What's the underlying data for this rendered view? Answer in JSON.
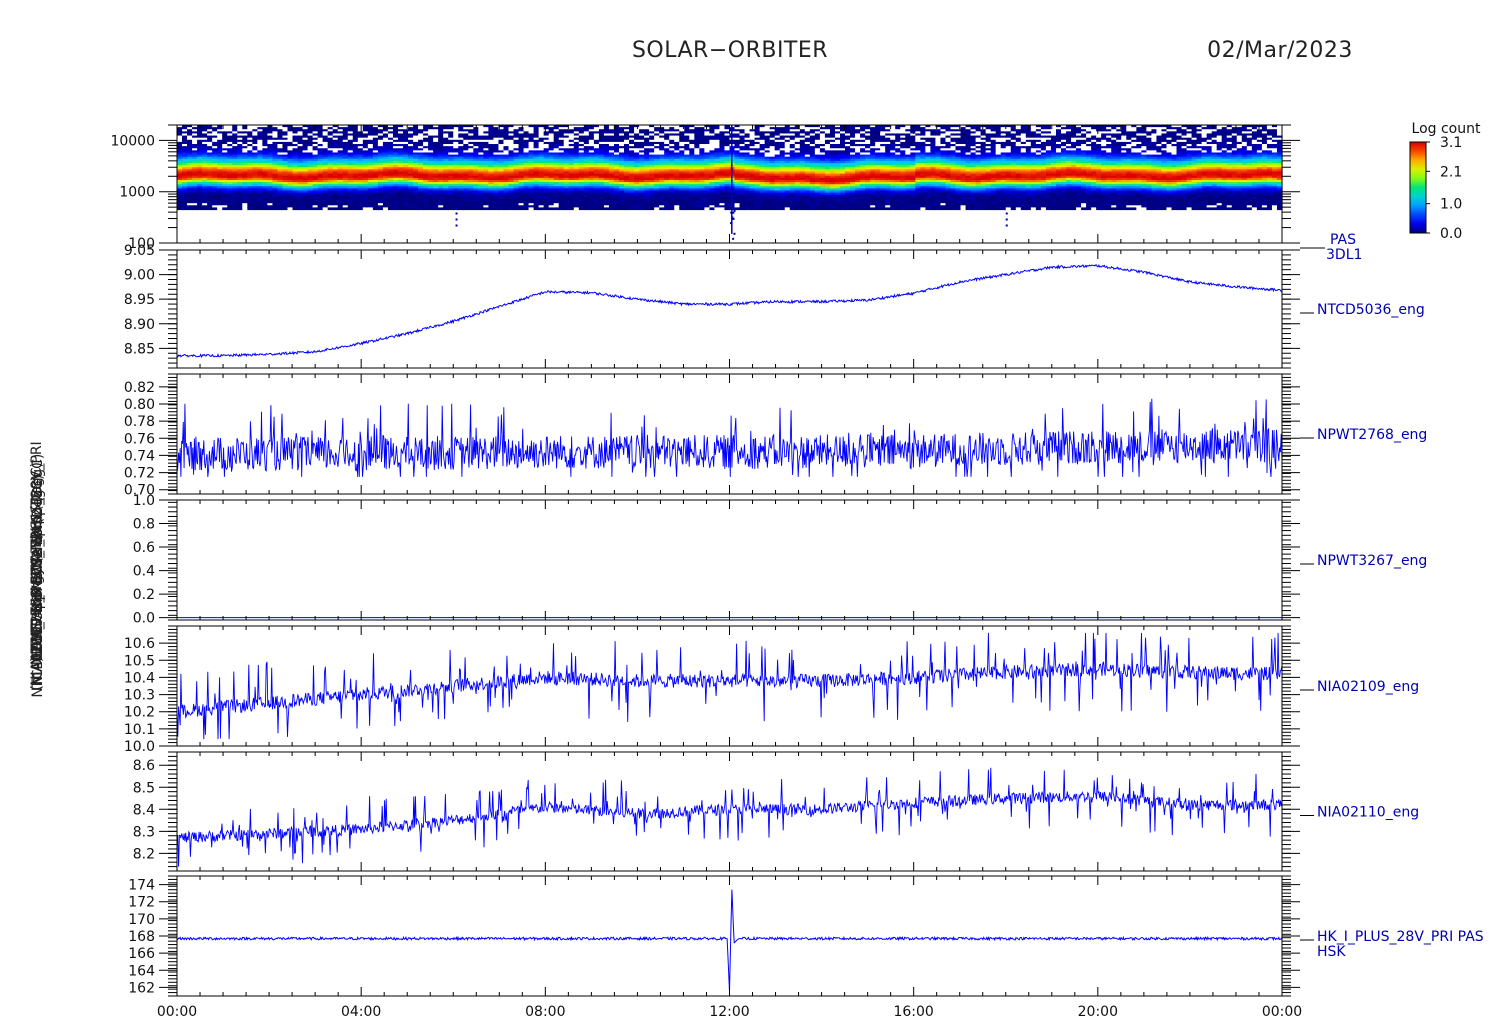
{
  "header": {
    "title": "SOLAR−ORBITER",
    "date": "02/Mar/2023"
  },
  "colors": {
    "trace": "#0000ff",
    "label": "#0000b0",
    "axis": "#000000"
  },
  "y_titles": [
    "PAS Energy (eV)",
    "NTCD5036 Approx Temp (DegC)",
    "NPWT2768 SWA EAS1 T",
    "NPWT3267 SWA EAS2 T",
    "NIA02109 HIS ECS Temp (DegC)",
    "NIA02110 HIS ECS2 Temp (DegC)",
    "(mA) DM_HK_IMON_I_PLUS_28V_PRI"
  ],
  "x_axis": {
    "ticks": [
      "00:00",
      "04:00",
      "08:00",
      "12:00",
      "16:00",
      "20:00",
      "00:00"
    ],
    "range_hours": [
      0,
      24
    ]
  },
  "colorbar": {
    "title": "Log count",
    "ticks": [
      "3.1",
      "2.1",
      "1.0",
      "0.0"
    ]
  },
  "chart_data": [
    {
      "type": "heatmap",
      "panel_label": "PAS",
      "panel_label2": "3DL1",
      "y_scale": "log",
      "ylim": [
        100,
        20000
      ],
      "y_ticks": [
        "10000",
        "1000",
        "100"
      ],
      "peak_energy_ev": 2000,
      "band_energy_range_ev": [
        450,
        20000
      ],
      "colorbar_range": [
        0.0,
        3.1
      ],
      "spike_time_hours": 12.05
    },
    {
      "type": "line",
      "panel_label": "NTCD5036_eng",
      "ylim": [
        8.81,
        9.05
      ],
      "y_ticks": [
        "9.05",
        "9.00",
        "8.95",
        "8.90",
        "8.85"
      ],
      "x": [
        0,
        1,
        2,
        3,
        4,
        5,
        6,
        7,
        8,
        9,
        10,
        11,
        12,
        13,
        14,
        15,
        16,
        17,
        18,
        19,
        20,
        21,
        22,
        23,
        24
      ],
      "values": [
        8.835,
        8.835,
        8.838,
        8.843,
        8.86,
        8.88,
        8.905,
        8.935,
        8.965,
        8.963,
        8.95,
        8.94,
        8.94,
        8.945,
        8.945,
        8.948,
        8.962,
        8.985,
        9.0,
        9.015,
        9.018,
        9.005,
        8.985,
        8.975,
        8.968
      ]
    },
    {
      "type": "line",
      "panel_label": "NPWT2768_eng",
      "ylim": [
        0.695,
        0.835
      ],
      "y_ticks": [
        "0.82",
        "0.80",
        "0.78",
        "0.76",
        "0.74",
        "0.72",
        "0.70"
      ],
      "x": [
        0,
        4,
        8,
        12,
        16,
        20,
        24
      ],
      "values": [
        0.74,
        0.74,
        0.742,
        0.742,
        0.743,
        0.748,
        0.75
      ],
      "noise_range": [
        0.715,
        0.825
      ]
    },
    {
      "type": "line",
      "panel_label": "NPWT3267_eng",
      "ylim": [
        -0.02,
        1.0
      ],
      "y_ticks": [
        "1.0",
        "0.8",
        "0.6",
        "0.4",
        "0.2",
        "0.0"
      ],
      "x": [
        0,
        24
      ],
      "values": [
        0.0,
        0.0
      ]
    },
    {
      "type": "line",
      "panel_label": "NIA02109_eng",
      "ylim": [
        10.0,
        10.7
      ],
      "y_ticks": [
        "10.6",
        "10.5",
        "10.4",
        "10.3",
        "10.2",
        "10.1",
        "10.0"
      ],
      "x": [
        0,
        2,
        4,
        6,
        8,
        10,
        12,
        14,
        16,
        18,
        20,
        22,
        24
      ],
      "values": [
        10.2,
        10.25,
        10.3,
        10.35,
        10.4,
        10.38,
        10.38,
        10.38,
        10.4,
        10.43,
        10.45,
        10.43,
        10.42
      ]
    },
    {
      "type": "line",
      "panel_label": "NIA02110_eng",
      "ylim": [
        8.12,
        8.66
      ],
      "y_ticks": [
        "8.6",
        "8.5",
        "8.4",
        "8.3",
        "8.2"
      ],
      "x": [
        0,
        2,
        4,
        6,
        8,
        10,
        12,
        14,
        16,
        18,
        20,
        22,
        24
      ],
      "values": [
        8.27,
        8.29,
        8.31,
        8.35,
        8.41,
        8.38,
        8.4,
        8.4,
        8.43,
        8.45,
        8.46,
        8.42,
        8.42
      ]
    },
    {
      "type": "line",
      "panel_label": "HK_I_PLUS_28V_PRI PAS",
      "panel_label2": "HSK",
      "ylim": [
        161,
        175
      ],
      "y_ticks": [
        "174",
        "172",
        "170",
        "168",
        "166",
        "164",
        "162"
      ],
      "x": [
        0,
        11.95,
        12.0,
        12.05,
        12.1,
        12.2,
        24
      ],
      "values": [
        167.7,
        167.7,
        161.5,
        173.6,
        167.2,
        167.7,
        167.7
      ]
    }
  ]
}
